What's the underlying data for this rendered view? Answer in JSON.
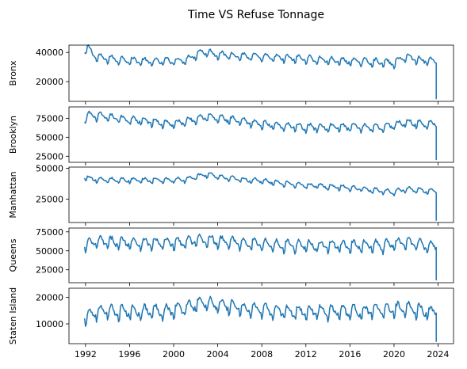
{
  "chart_data": {
    "type": "line",
    "title": "Time VS Refuse Tonnage",
    "line_color": "#1f77b4",
    "x_ticks": [
      "1992",
      "1996",
      "2000",
      "2004",
      "2008",
      "2012",
      "2016",
      "2020",
      "2024"
    ],
    "xlim": [
      1990.5,
      2025.4
    ],
    "subplots": [
      {
        "ylabel": "Bronx",
        "ylim": [
          6500,
          45000
        ],
        "y_ticks": [
          {
            "value": 20000,
            "label": "20000"
          },
          {
            "value": 40000,
            "label": "40000"
          }
        ],
        "anchors": [
          [
            1991.9,
            41000
          ],
          [
            1992.2,
            43500
          ],
          [
            1993.0,
            37000
          ],
          [
            1995.0,
            35500
          ],
          [
            1998.0,
            34000
          ],
          [
            2001.0,
            35000
          ],
          [
            2002.6,
            41000
          ],
          [
            2004.0,
            39000
          ],
          [
            2007.0,
            37500
          ],
          [
            2010.0,
            36500
          ],
          [
            2012.0,
            36000
          ],
          [
            2015.0,
            34500
          ],
          [
            2018.0,
            34000
          ],
          [
            2020.0,
            33000
          ],
          [
            2021.0,
            37500
          ],
          [
            2022.5,
            35000
          ],
          [
            2023.5,
            34500
          ],
          [
            2023.7,
            35000
          ]
        ],
        "seasonal_amp": 3000,
        "end": [
          2023.83,
          8000
        ]
      },
      {
        "ylabel": "Brooklyn",
        "ylim": [
          17000,
          90000
        ],
        "y_ticks": [
          {
            "value": 25000,
            "label": "25000"
          },
          {
            "value": 50000,
            "label": "50000"
          },
          {
            "value": 75000,
            "label": "75000"
          }
        ],
        "anchors": [
          [
            1991.9,
            72000
          ],
          [
            1992.2,
            80000
          ],
          [
            1993.5,
            78000
          ],
          [
            1996.0,
            74000
          ],
          [
            2000.0,
            68000
          ],
          [
            2002.8,
            78000
          ],
          [
            2004.0,
            76000
          ],
          [
            2008.0,
            68000
          ],
          [
            2012.0,
            64000
          ],
          [
            2016.0,
            64000
          ],
          [
            2019.0,
            64000
          ],
          [
            2021.0,
            70000
          ],
          [
            2023.0,
            68000
          ],
          [
            2023.7,
            68000
          ]
        ],
        "seasonal_amp": 6000,
        "end": [
          2023.83,
          20000
        ]
      },
      {
        "ylabel": "Manhattan",
        "ylim": [
          6000,
          51000
        ],
        "y_ticks": [
          {
            "value": 25000,
            "label": "25000"
          },
          {
            "value": 50000,
            "label": "50000"
          }
        ],
        "anchors": [
          [
            1991.9,
            43000
          ],
          [
            1993.0,
            41000
          ],
          [
            1997.0,
            40500
          ],
          [
            2001.0,
            41000
          ],
          [
            2003.0,
            45500
          ],
          [
            2004.5,
            42500
          ],
          [
            2008.0,
            40000
          ],
          [
            2012.0,
            36500
          ],
          [
            2016.0,
            34500
          ],
          [
            2020.0,
            31000
          ],
          [
            2021.0,
            33500
          ],
          [
            2023.0,
            32000
          ],
          [
            2023.7,
            31500
          ]
        ],
        "seasonal_amp": 2500,
        "end": [
          2023.83,
          7500
        ]
      },
      {
        "ylabel": "Queens",
        "ylim": [
          8000,
          80000
        ],
        "y_ticks": [
          {
            "value": 25000,
            "label": "25000"
          },
          {
            "value": 50000,
            "label": "50000"
          },
          {
            "value": 75000,
            "label": "75000"
          }
        ],
        "anchors": [
          [
            1991.9,
            58000
          ],
          [
            1993.0,
            63000
          ],
          [
            1996.0,
            62000
          ],
          [
            2000.0,
            61000
          ],
          [
            2003.0,
            66000
          ],
          [
            2004.0,
            64000
          ],
          [
            2008.0,
            60000
          ],
          [
            2012.0,
            58000
          ],
          [
            2016.0,
            58000
          ],
          [
            2019.0,
            58000
          ],
          [
            2021.0,
            62000
          ],
          [
            2023.0,
            58000
          ],
          [
            2023.7,
            58000
          ]
        ],
        "seasonal_amp": 9000,
        "end": [
          2023.83,
          11000
        ]
      },
      {
        "ylabel": "Staten Island",
        "ylim": [
          2500,
          23500
        ],
        "y_ticks": [
          {
            "value": 10000,
            "label": "10000"
          },
          {
            "value": 20000,
            "label": "20000"
          }
        ],
        "anchors": [
          [
            1991.9,
            13000
          ],
          [
            1993.0,
            15000
          ],
          [
            1996.0,
            15000
          ],
          [
            2000.0,
            15500
          ],
          [
            2002.8,
            18500
          ],
          [
            2004.0,
            17500
          ],
          [
            2008.0,
            15500
          ],
          [
            2012.0,
            15000
          ],
          [
            2016.0,
            15000
          ],
          [
            2019.0,
            15500
          ],
          [
            2021.0,
            16500
          ],
          [
            2023.0,
            15000
          ],
          [
            2023.7,
            15000
          ]
        ],
        "seasonal_amp": 3000,
        "end": [
          2023.83,
          3200
        ]
      }
    ]
  }
}
